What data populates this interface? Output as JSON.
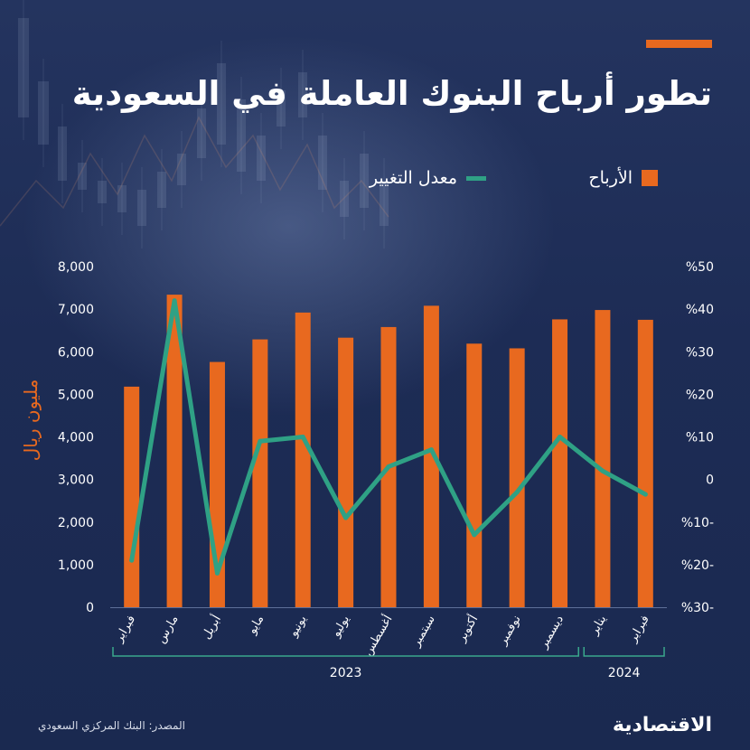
{
  "title": "تطور أرباح البنوك العاملة في السعودية",
  "legend": {
    "profits": "الأرباح",
    "rate": "معدل التغيير"
  },
  "ylabel_left": "مليون ريال",
  "source": "المصدر: البنك المركزي السعودي",
  "brand": "الاقتصادية",
  "colors": {
    "bars": "#e8691f",
    "line": "#2fa185",
    "background": "#1c2b52",
    "text": "#ffffff"
  },
  "chart_data": {
    "type": "bar",
    "categories": [
      "فبراير",
      "مارس",
      "أبريل",
      "مايو",
      "يونيو",
      "يوليو",
      "أغسطس",
      "سبتمبر",
      "أكتوبر",
      "نوفمبر",
      "ديسمبر",
      "يناير",
      "فبراير"
    ],
    "year_groups": [
      {
        "label": "2023",
        "from": 0,
        "to": 10
      },
      {
        "label": "2024",
        "from": 11,
        "to": 12
      }
    ],
    "series": [
      {
        "name": "الأرباح",
        "type": "bar",
        "axis": "left",
        "values": [
          5180,
          7340,
          5760,
          6290,
          6920,
          6330,
          6580,
          7080,
          6190,
          6080,
          6760,
          6980,
          6750
        ]
      },
      {
        "name": "معدل التغيير",
        "type": "line",
        "axis": "right",
        "values": [
          -19,
          42,
          -22,
          9,
          10,
          -9,
          3,
          7,
          -13,
          -3,
          10,
          2,
          -3.5
        ]
      }
    ],
    "ylim_left": [
      0,
      8000
    ],
    "ylim_right": [
      -30,
      50
    ],
    "yticks_left": [
      "0",
      "1,000",
      "2,000",
      "3,000",
      "4,000",
      "5,000",
      "6,000",
      "7,000",
      "8,000"
    ],
    "yticks_right": [
      "%30-",
      "%20-",
      "%10-",
      "0",
      "%10",
      "%20",
      "%30",
      "%40",
      "%50"
    ],
    "grid": false
  }
}
